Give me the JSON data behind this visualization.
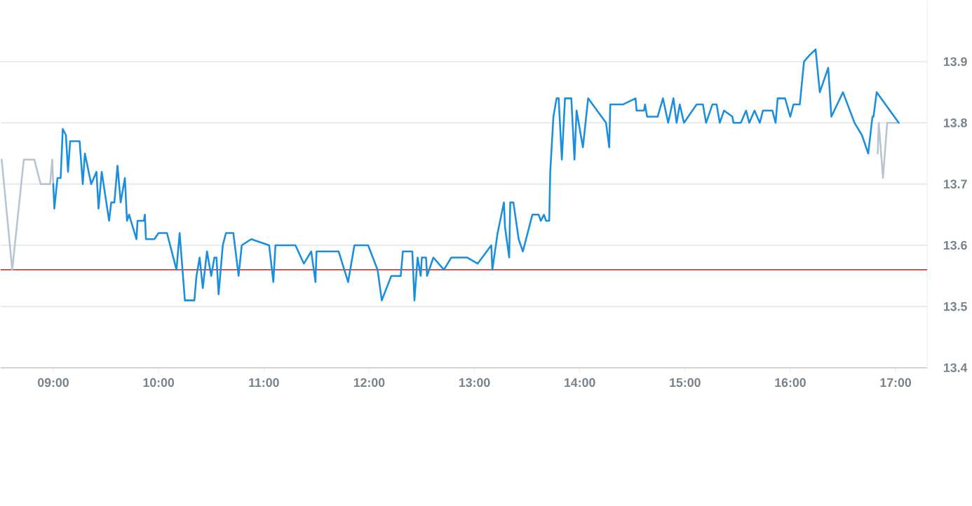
{
  "chart_data": {
    "type": "line",
    "xlim": [
      8.5,
      17.3
    ],
    "ylim": [
      13.4,
      14.0
    ],
    "xticks": [
      {
        "value": 9,
        "label": "09:00"
      },
      {
        "value": 10,
        "label": "10:00"
      },
      {
        "value": 11,
        "label": "11:00"
      },
      {
        "value": 12,
        "label": "12:00"
      },
      {
        "value": 13,
        "label": "13:00"
      },
      {
        "value": 14,
        "label": "14:00"
      },
      {
        "value": 15,
        "label": "15:00"
      },
      {
        "value": 16,
        "label": "16:00"
      },
      {
        "value": 17,
        "label": "17:00"
      }
    ],
    "yticks": [
      13.4,
      13.5,
      13.6,
      13.7,
      13.8,
      13.9
    ],
    "grid": "y",
    "marker": "none",
    "line_style": "solid",
    "ref_lines": [
      {
        "axis": "y",
        "value": 13.56,
        "color": "#d63b3b"
      }
    ],
    "series": [
      {
        "color": "#b8c5d0",
        "x": [
          8.51,
          8.61,
          8.72,
          8.82,
          8.88,
          8.97,
          8.99,
          9.0
        ],
        "values": [
          13.74,
          13.56,
          13.74,
          13.74,
          13.7,
          13.7,
          13.74,
          13.7
        ]
      },
      {
        "color": "#b8c5d0",
        "x": [
          16.83,
          16.84,
          16.88,
          16.92,
          17.03
        ],
        "values": [
          13.75,
          13.8,
          13.71,
          13.8,
          13.8
        ]
      },
      {
        "color": "#1a8fdd",
        "x": [
          9.0,
          9.01,
          9.04,
          9.07,
          9.09,
          9.12,
          9.14,
          9.16,
          9.25,
          9.28,
          9.3,
          9.36,
          9.41,
          9.43,
          9.46,
          9.53,
          9.55,
          9.58,
          9.61,
          9.64,
          9.68,
          9.7,
          9.72,
          9.79,
          9.8,
          9.86,
          9.87,
          9.88,
          9.96,
          10.0,
          10.08,
          10.17,
          10.2,
          10.25,
          10.34,
          10.36,
          10.39,
          10.42,
          10.46,
          10.5,
          10.53,
          10.55,
          10.57,
          10.61,
          10.64,
          10.71,
          10.76,
          10.79,
          10.88,
          11.05,
          11.09,
          11.11,
          11.3,
          11.38,
          11.45,
          11.49,
          11.5,
          11.71,
          11.8,
          11.86,
          11.99,
          12.08,
          12.12,
          12.21,
          12.3,
          12.32,
          12.41,
          12.43,
          12.46,
          12.49,
          12.5,
          12.54,
          12.55,
          12.61,
          12.71,
          12.78,
          12.93,
          13.03,
          13.16,
          13.17,
          13.22,
          13.28,
          13.29,
          13.33,
          13.34,
          13.37,
          13.42,
          13.46,
          13.55,
          13.61,
          13.63,
          13.66,
          13.68,
          13.71,
          13.72,
          13.75,
          13.78,
          13.8,
          13.83,
          13.86,
          13.92,
          13.95,
          13.97,
          14.03,
          14.08,
          14.25,
          14.28,
          14.29,
          14.41,
          14.53,
          14.54,
          14.61,
          14.62,
          14.64,
          14.74,
          14.79,
          14.84,
          14.89,
          14.92,
          14.95,
          14.99,
          15.11,
          15.17,
          15.2,
          15.24,
          15.26,
          15.3,
          15.33,
          15.37,
          15.45,
          15.46,
          15.53,
          15.58,
          15.61,
          15.66,
          15.71,
          15.74,
          15.83,
          15.86,
          15.88,
          15.95,
          16.0,
          16.03,
          16.09,
          16.13,
          16.18,
          16.24,
          16.28,
          16.36,
          16.39,
          16.5,
          16.61,
          16.68,
          16.74,
          16.78,
          16.79,
          16.82,
          17.03
        ],
        "values": [
          13.7,
          13.66,
          13.71,
          13.71,
          13.79,
          13.78,
          13.72,
          13.77,
          13.77,
          13.7,
          13.75,
          13.7,
          13.72,
          13.66,
          13.72,
          13.64,
          13.67,
          13.67,
          13.73,
          13.67,
          13.71,
          13.64,
          13.65,
          13.61,
          13.64,
          13.64,
          13.65,
          13.61,
          13.61,
          13.62,
          13.62,
          13.56,
          13.62,
          13.51,
          13.51,
          13.55,
          13.58,
          13.53,
          13.59,
          13.55,
          13.58,
          13.58,
          13.52,
          13.6,
          13.62,
          13.62,
          13.55,
          13.6,
          13.61,
          13.6,
          13.54,
          13.6,
          13.6,
          13.57,
          13.59,
          13.54,
          13.59,
          13.59,
          13.54,
          13.6,
          13.6,
          13.56,
          13.51,
          13.55,
          13.55,
          13.59,
          13.59,
          13.51,
          13.58,
          13.55,
          13.58,
          13.58,
          13.55,
          13.58,
          13.56,
          13.58,
          13.58,
          13.57,
          13.6,
          13.56,
          13.62,
          13.67,
          13.63,
          13.58,
          13.67,
          13.67,
          13.61,
          13.59,
          13.65,
          13.65,
          13.64,
          13.65,
          13.64,
          13.64,
          13.72,
          13.81,
          13.84,
          13.84,
          13.74,
          13.84,
          13.84,
          13.74,
          13.82,
          13.76,
          13.84,
          13.8,
          13.76,
          13.83,
          13.83,
          13.84,
          13.82,
          13.82,
          13.83,
          13.81,
          13.81,
          13.84,
          13.8,
          13.84,
          13.8,
          13.83,
          13.8,
          13.83,
          13.83,
          13.8,
          13.82,
          13.83,
          13.83,
          13.8,
          13.82,
          13.81,
          13.8,
          13.8,
          13.82,
          13.8,
          13.82,
          13.8,
          13.82,
          13.82,
          13.8,
          13.84,
          13.84,
          13.81,
          13.83,
          13.83,
          13.9,
          13.91,
          13.92,
          13.85,
          13.89,
          13.81,
          13.85,
          13.8,
          13.78,
          13.75,
          13.81,
          13.81,
          13.85,
          13.8
        ]
      }
    ]
  }
}
